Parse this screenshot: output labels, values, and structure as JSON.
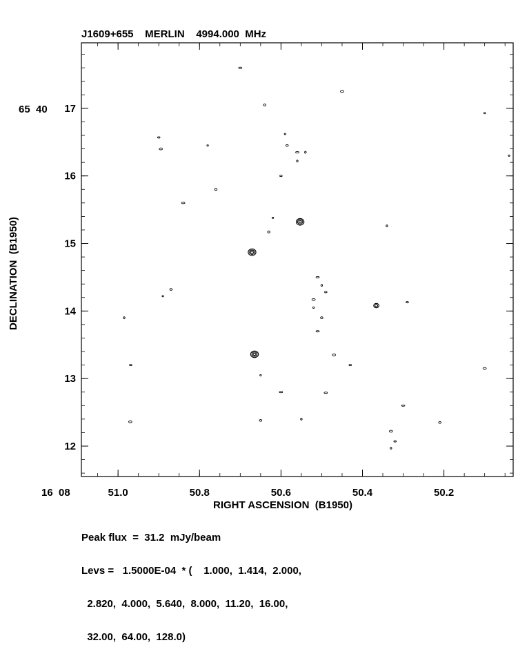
{
  "chart_data": {
    "type": "contour",
    "title": "J1609+655    MERLIN    4994.000  MHz",
    "xlabel": "RIGHT ASCENSION  (B1950)",
    "ylabel": "DECLINATION  (B1950)",
    "x_units": "seconds of RA past 16 08",
    "y_units": "arcseconds of Dec past 65 40",
    "xlim": [
      51.09,
      50.03
    ],
    "ylim": [
      11.55,
      17.97
    ],
    "x_prefix": "16  08",
    "y_prefix": "65  40",
    "x_ticks": [
      {
        "value": 51.0,
        "label": "51.0"
      },
      {
        "value": 50.8,
        "label": "50.8"
      },
      {
        "value": 50.6,
        "label": "50.6"
      },
      {
        "value": 50.4,
        "label": "50.4"
      },
      {
        "value": 50.2,
        "label": "50.2"
      }
    ],
    "y_ticks": [
      {
        "value": 17,
        "label": "17"
      },
      {
        "value": 16,
        "label": "16"
      },
      {
        "value": 15,
        "label": "15"
      },
      {
        "value": 14,
        "label": "14"
      },
      {
        "value": 13,
        "label": "13"
      },
      {
        "value": 12,
        "label": "12"
      }
    ],
    "sources": [
      {
        "ra": 50.553,
        "dec": 15.32,
        "rings": 3
      },
      {
        "ra": 50.671,
        "dec": 14.87,
        "rings": 3
      },
      {
        "ra": 50.665,
        "dec": 13.36,
        "rings": 3
      },
      {
        "ra": 50.366,
        "dec": 14.08,
        "rings": 2
      }
    ],
    "noise_blobs": [
      [
        50.59,
        16.62
      ],
      [
        50.585,
        16.45
      ],
      [
        50.56,
        16.35
      ],
      [
        50.56,
        16.22
      ],
      [
        50.9,
        16.57
      ],
      [
        50.895,
        16.4
      ],
      [
        50.78,
        16.45
      ],
      [
        50.76,
        15.8
      ],
      [
        50.84,
        15.6
      ],
      [
        50.985,
        13.9
      ],
      [
        50.969,
        13.2
      ],
      [
        50.97,
        12.36
      ],
      [
        50.89,
        14.22
      ],
      [
        50.87,
        14.32
      ],
      [
        50.51,
        14.5
      ],
      [
        50.5,
        14.38
      ],
      [
        50.49,
        14.28
      ],
      [
        50.52,
        14.17
      ],
      [
        50.52,
        14.05
      ],
      [
        50.5,
        13.9
      ],
      [
        50.51,
        13.7
      ],
      [
        50.34,
        15.26
      ],
      [
        50.32,
        12.07
      ],
      [
        50.33,
        12.22
      ],
      [
        50.65,
        13.05
      ],
      [
        50.65,
        12.38
      ],
      [
        50.6,
        12.8
      ],
      [
        50.55,
        12.4
      ],
      [
        50.29,
        14.13
      ],
      [
        50.1,
        13.15
      ],
      [
        50.04,
        16.3
      ],
      [
        50.21,
        12.35
      ],
      [
        50.49,
        12.79
      ],
      [
        50.54,
        16.35
      ],
      [
        50.6,
        16.0
      ],
      [
        50.45,
        17.25
      ],
      [
        50.62,
        15.38
      ],
      [
        50.63,
        15.17
      ],
      [
        50.3,
        12.6
      ],
      [
        50.33,
        11.97
      ],
      [
        50.43,
        13.2
      ],
      [
        50.47,
        13.35
      ],
      [
        50.1,
        16.93
      ],
      [
        50.64,
        17.05
      ],
      [
        50.7,
        17.6
      ]
    ],
    "grid": false
  },
  "footer": {
    "peak_line": "Peak flux  =  31.2  mJy/beam",
    "levs_line1": "Levs =   1.5000E-04  * (    1.000,  1.414,  2.000,",
    "levs_line2": "  2.820,  4.000,  5.640,  8.000,  11.20,  16.00,",
    "levs_line3": "  32.00,  64.00,  128.0)"
  }
}
